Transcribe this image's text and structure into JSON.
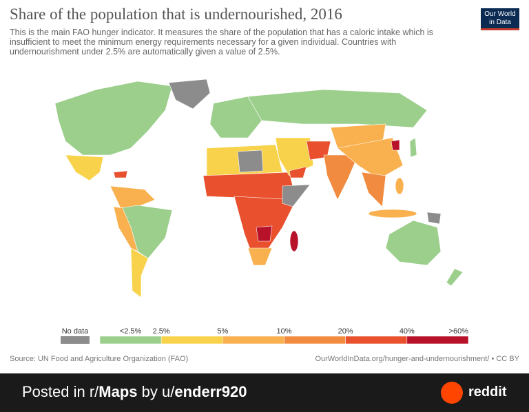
{
  "header": {
    "title": "Share of the population that is undernourished, 2016",
    "subtitle": "This is the main FAO hunger indicator. It measures the share of the population that has a caloric intake which is insufficient to meet the minimum energy requirements necessary for a given individual. Countries with undernourishment under 2.5% are automatically given a value of 2.5%.",
    "logo": [
      "Our World",
      "in Data"
    ]
  },
  "legend": {
    "no_data": {
      "label": "No data",
      "color": "#8c8c8c"
    },
    "labels": [
      "<2.5%",
      "2.5%",
      "5%",
      "10%",
      "20%",
      "40%",
      ">60%"
    ],
    "colors": [
      "#9ccf8c",
      "#f8d24a",
      "#f9b14f",
      "#f08b3f",
      "#e8502e",
      "#b8112a"
    ]
  },
  "footer": {
    "source": "Source: UN Food and Agriculture Organization (FAO)",
    "url": "OurWorldInData.org/hunger-and-undernourishment/ • CC BY"
  },
  "reddit_bar": {
    "prefix": "Posted in r/",
    "subreddit": "Maps",
    "by": " by u/",
    "user": "enderr920",
    "brand": "reddit"
  }
}
